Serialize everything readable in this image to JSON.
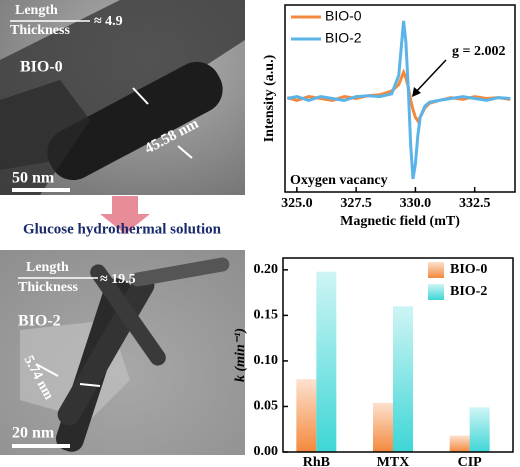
{
  "images": [
    {
      "ratio_top": "Length",
      "ratio_bottom": "Thickness",
      "ratio_value": "≈ 4.9",
      "label": "BIO-0",
      "measure": "45.58 nm",
      "scale": "50 nm"
    },
    {
      "ratio_top": "Length",
      "ratio_bottom": "Thickness",
      "ratio_value": "≈ 19.5",
      "label": "BIO-2",
      "measure": "5.74 nm",
      "scale": "20 nm"
    }
  ],
  "caption": "Glucose hydrothermal solution",
  "chart_data": [
    {
      "type": "line",
      "x_label": "Magnetic field (mT)",
      "y_label": "Intensity (a.u.)",
      "annotations": [
        "g = 2.002",
        "Oxygen vacancy"
      ],
      "x": [
        324.6,
        325,
        325.5,
        326,
        326.5,
        327,
        327.5,
        328,
        328.5,
        329,
        329.3,
        329.5,
        329.6,
        329.7,
        329.8,
        329.9,
        330,
        330.1,
        330.2,
        330.4,
        330.6,
        331,
        331.5,
        332,
        332.5,
        333,
        333.5,
        334
      ],
      "series": [
        {
          "name": "BIO-0",
          "color": "#f4883c",
          "values": [
            0.01,
            -0.02,
            0.02,
            0,
            -0.02,
            0.02,
            0,
            0.03,
            0.04,
            0.08,
            0.15,
            0.28,
            0.22,
            0.12,
            -0.02,
            -0.12,
            -0.2,
            -0.24,
            -0.2,
            -0.1,
            -0.05,
            -0.02,
            0.01,
            -0.01,
            0.02,
            0,
            0.01,
            -0.01
          ]
        },
        {
          "name": "BIO-2",
          "color": "#5ab4e8",
          "values": [
            0,
            0.02,
            -0.02,
            0.02,
            0,
            -0.02,
            0.02,
            0.03,
            0.02,
            0.05,
            0.25,
            0.83,
            0.6,
            0.1,
            -0.5,
            -0.86,
            -0.7,
            -0.4,
            -0.2,
            -0.08,
            -0.04,
            -0.02,
            0,
            0.02,
            0,
            -0.02,
            0.01,
            0
          ]
        }
      ],
      "xlim": [
        324.5,
        334.2
      ],
      "xticks": [
        {
          "value": 325,
          "label": "325.0"
        },
        {
          "value": 327.5,
          "label": "327.5"
        },
        {
          "value": 330,
          "label": "330.0"
        },
        {
          "value": 332.5,
          "label": "332.5"
        }
      ],
      "ylim": [
        -1,
        1
      ],
      "legend": "top-left"
    },
    {
      "type": "bar",
      "y_label": "k (min⁻¹)",
      "categories": [
        "RhB",
        "MTX",
        "CIP"
      ],
      "series": [
        {
          "name": "BIO-0",
          "color": "#f4883c",
          "values": [
            0.08,
            0.054,
            0.018
          ]
        },
        {
          "name": "BIO-2",
          "color": "#3ed6d6",
          "values": [
            0.198,
            0.16,
            0.049
          ]
        }
      ],
      "ylim": [
        0,
        0.213
      ],
      "yticks": [
        {
          "value": 0,
          "label": "0.00"
        },
        {
          "value": 0.05,
          "label": "0.05"
        },
        {
          "value": 0.1,
          "label": "0.10"
        },
        {
          "value": 0.15,
          "label": "0.15"
        },
        {
          "value": 0.2,
          "label": "0.20"
        }
      ],
      "legend": "top-right"
    }
  ]
}
